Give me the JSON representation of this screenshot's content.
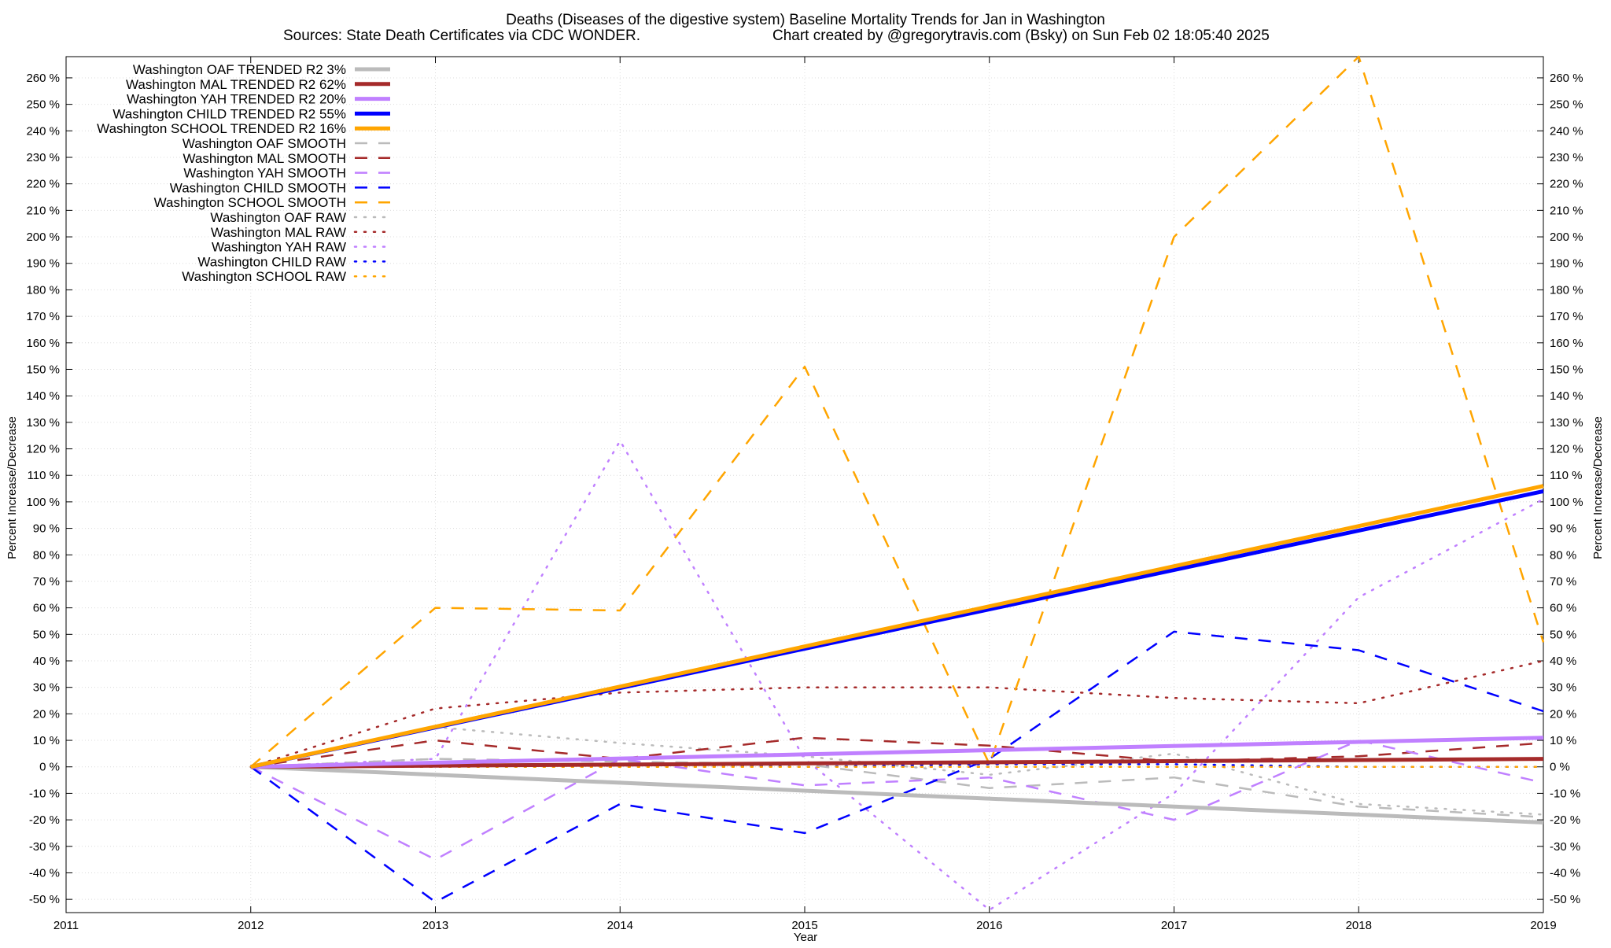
{
  "chart_data": {
    "type": "line",
    "title": "Deaths (Diseases of the digestive system)  Baseline Mortality Trends for Jan in Washington",
    "subtitle_left": "Sources: State Death Certificates via CDC WONDER.",
    "subtitle_right": "Chart created by @gregorytravis.com (Bsky) on Sun Feb 02 18:05:40 2025",
    "xlabel": "Year",
    "ylabel": "Percent Increase/Decrease",
    "xlim": [
      2011,
      2019
    ],
    "ylim": [
      -55,
      268
    ],
    "x_ticks": [
      "2011",
      "2012",
      "2013",
      "2014",
      "2015",
      "2016",
      "2017",
      "2018",
      "2019"
    ],
    "y_ticks": [
      "260 %",
      "250 %",
      "240 %",
      "230 %",
      "220 %",
      "210 %",
      "200 %",
      "190 %",
      "180 %",
      "170 %",
      "160 %",
      "150 %",
      "140 %",
      "130 %",
      "120 %",
      "110 %",
      "100 %",
      "90 %",
      "80 %",
      "70 %",
      "60 %",
      "50 %",
      "40 %",
      "30 %",
      "20 %",
      "10 %",
      "0 %",
      "-10 %",
      "-20 %",
      "-30 %",
      "-40 %",
      "-50 %"
    ],
    "grid": true,
    "legend_position": "top-left",
    "series": [
      {
        "name": "Washington OAF TRENDED R2  3%",
        "color": "#bbbbbb",
        "style": "solid",
        "x": [
          2012,
          2019
        ],
        "y": [
          0,
          -21
        ]
      },
      {
        "name": "Washington MAL TRENDED R2  62%",
        "color": "#a52a2a",
        "style": "solid",
        "x": [
          2012,
          2019
        ],
        "y": [
          0,
          3
        ]
      },
      {
        "name": "Washington YAH TRENDED R2  20%",
        "color": "#c080ff",
        "style": "solid",
        "x": [
          2012,
          2019
        ],
        "y": [
          0,
          11
        ]
      },
      {
        "name": "Washington CHILD TRENDED R2  55%",
        "color": "#0000ff",
        "style": "solid",
        "x": [
          2012,
          2019
        ],
        "y": [
          0,
          104
        ]
      },
      {
        "name": "Washington SCHOOL TRENDED R2  16%",
        "color": "#ffa500",
        "style": "solid",
        "x": [
          2012,
          2019
        ],
        "y": [
          0,
          106
        ]
      },
      {
        "name": "Washington OAF SMOOTH",
        "color": "#bbbbbb",
        "style": "dashed",
        "x": [
          2012,
          2013,
          2014,
          2015,
          2016,
          2017,
          2018,
          2019
        ],
        "y": [
          0,
          3,
          2,
          1,
          -8,
          -4,
          -15,
          -19
        ]
      },
      {
        "name": "Washington MAL SMOOTH",
        "color": "#a52a2a",
        "style": "dashed",
        "x": [
          2012,
          2013,
          2014,
          2015,
          2016,
          2017,
          2018,
          2019
        ],
        "y": [
          0,
          10,
          3,
          11,
          8,
          2,
          4,
          9
        ]
      },
      {
        "name": "Washington YAH SMOOTH",
        "color": "#c080ff",
        "style": "dashed",
        "x": [
          2012,
          2013,
          2014,
          2015,
          2016,
          2017,
          2018,
          2019
        ],
        "y": [
          0,
          -35,
          3,
          -7,
          -4,
          -20,
          10,
          -6
        ]
      },
      {
        "name": "Washington CHILD SMOOTH",
        "color": "#0000ff",
        "style": "dashed",
        "x": [
          2012,
          2013,
          2014,
          2015,
          2016,
          2017,
          2018,
          2019
        ],
        "y": [
          0,
          -51,
          -14,
          -25,
          3,
          51,
          44,
          21
        ]
      },
      {
        "name": "Washington SCHOOL SMOOTH",
        "color": "#ffa500",
        "style": "dashed",
        "x": [
          2012,
          2013,
          2014,
          2015,
          2016,
          2017,
          2018,
          2019
        ],
        "y": [
          0,
          60,
          59,
          151,
          1,
          200,
          268,
          47
        ]
      },
      {
        "name": "Washington OAF RAW",
        "color": "#bbbbbb",
        "style": "dotted",
        "x": [
          2012,
          2013,
          2014,
          2015,
          2016,
          2017,
          2018,
          2019
        ],
        "y": [
          0,
          15,
          9,
          4,
          -3,
          5,
          -14,
          -18
        ]
      },
      {
        "name": "Washington MAL RAW",
        "color": "#a52a2a",
        "style": "dotted",
        "x": [
          2012,
          2013,
          2014,
          2015,
          2016,
          2017,
          2018,
          2019
        ],
        "y": [
          0,
          22,
          28,
          30,
          30,
          26,
          24,
          40
        ]
      },
      {
        "name": "Washington YAH RAW",
        "color": "#c080ff",
        "style": "dotted",
        "x": [
          2012,
          2013,
          2014,
          2015,
          2016,
          2017,
          2018,
          2019
        ],
        "y": [
          0,
          3,
          123,
          3,
          -54,
          -10,
          64,
          101
        ]
      },
      {
        "name": "Washington CHILD RAW",
        "color": "#0000ff",
        "style": "dotted",
        "x": [
          2012,
          2013,
          2014,
          2015,
          2016,
          2017,
          2018,
          2019
        ],
        "y": [
          0,
          0,
          1,
          0,
          1,
          1,
          0,
          0
        ]
      },
      {
        "name": "Washington SCHOOL RAW",
        "color": "#ffa500",
        "style": "dotted",
        "x": [
          2012,
          2013,
          2014,
          2015,
          2016,
          2017,
          2018,
          2019
        ],
        "y": [
          0,
          0,
          0,
          0,
          0,
          0,
          0,
          0
        ]
      }
    ]
  }
}
